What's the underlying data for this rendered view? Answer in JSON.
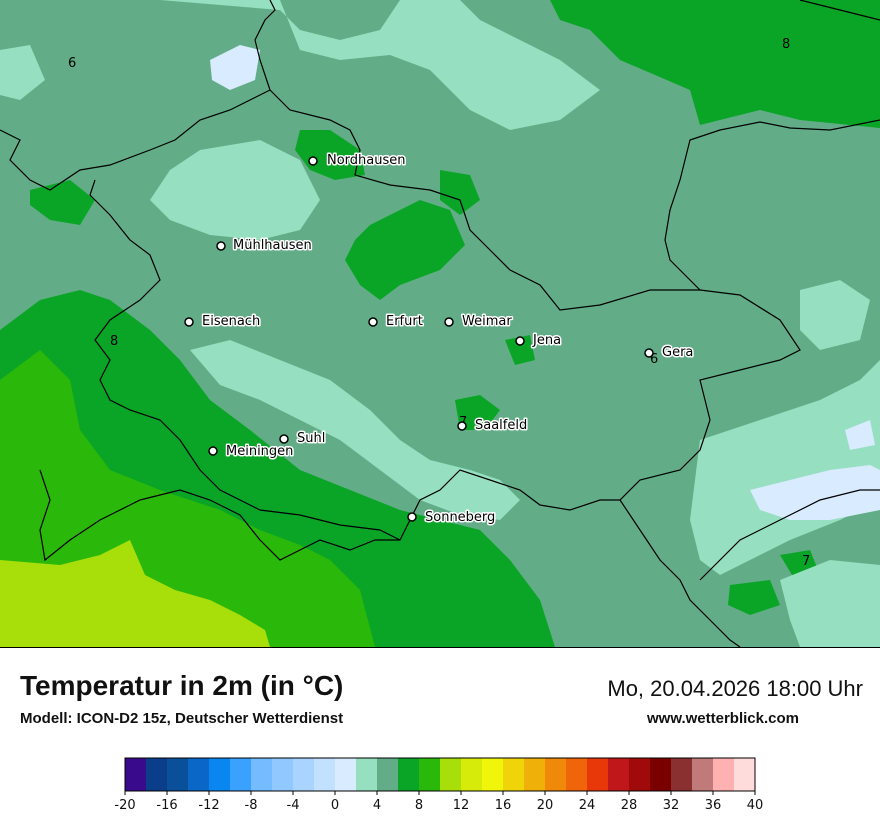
{
  "map": {
    "cities": [
      {
        "name": "Nordhausen"
      },
      {
        "name": "Mühlhausen"
      },
      {
        "name": "Eisenach"
      },
      {
        "name": "Erfurt"
      },
      {
        "name": "Weimar"
      },
      {
        "name": "Jena"
      },
      {
        "name": "Gera"
      },
      {
        "name": "Suhl"
      },
      {
        "name": "Meiningen"
      },
      {
        "name": "Saalfeld"
      },
      {
        "name": "Sonneberg"
      }
    ],
    "isotherm_labels": [
      "6",
      "8",
      "8",
      "6",
      "7",
      "7"
    ]
  },
  "header": {
    "title": "Temperatur in 2m (in °C)",
    "subtitle": "Modell: ICON-D2 15z, Deutscher Wetterdienst",
    "datetime": "Mo, 20.04.2026 18:00 Uhr",
    "website": "www.wetterblick.com"
  },
  "legend": {
    "colors": [
      "#3a0a8c",
      "#0a3d8a",
      "#0a4f9a",
      "#0a67c8",
      "#0a86f0",
      "#3aa1ff",
      "#74bbff",
      "#90c8ff",
      "#a8d4ff",
      "#c2e0ff",
      "#d8ebff",
      "#96dfc0",
      "#62ad87",
      "#0aa526",
      "#2ab80a",
      "#a8df0a",
      "#d6eb0a",
      "#f0f50a",
      "#f0d40a",
      "#f0b00a",
      "#f0880a",
      "#f0650a",
      "#e8380a",
      "#c0181a",
      "#a00a0a",
      "#7a0000",
      "#8a3030",
      "#c07a7a",
      "#ffb0b0",
      "#ffdcdc"
    ],
    "tick_labels": [
      "-20",
      "-16",
      "-12",
      "-8",
      "-4",
      "0",
      "4",
      "8",
      "12",
      "16",
      "20",
      "24",
      "28",
      "32",
      "36",
      "40"
    ]
  }
}
